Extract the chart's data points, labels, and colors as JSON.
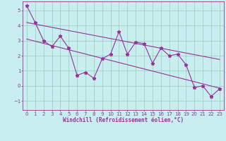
{
  "title": "",
  "xlabel": "Windchill (Refroidissement éolien,°C)",
  "bg_color": "#c8eef0",
  "grid_color": "#99ccbb",
  "line_color": "#993399",
  "xlim": [
    -0.5,
    23.5
  ],
  "ylim": [
    -1.6,
    5.6
  ],
  "xticks": [
    0,
    1,
    2,
    3,
    4,
    5,
    6,
    7,
    8,
    9,
    10,
    11,
    12,
    13,
    14,
    15,
    16,
    17,
    18,
    19,
    20,
    21,
    22,
    23
  ],
  "yticks": [
    -1,
    0,
    1,
    2,
    3,
    4,
    5
  ],
  "data_x": [
    0,
    1,
    2,
    3,
    4,
    5,
    6,
    7,
    8,
    9,
    10,
    11,
    12,
    13,
    14,
    15,
    16,
    17,
    18,
    19,
    20,
    21,
    22,
    23
  ],
  "data_y": [
    5.3,
    4.2,
    3.0,
    2.6,
    3.3,
    2.5,
    0.7,
    0.9,
    0.5,
    1.8,
    2.1,
    3.6,
    2.1,
    2.9,
    2.8,
    1.5,
    2.5,
    2.0,
    2.1,
    1.4,
    -0.1,
    0.0,
    -0.7,
    -0.2
  ],
  "trend1_x": [
    0,
    23
  ],
  "trend1_y": [
    4.2,
    1.75
  ],
  "trend2_x": [
    0,
    23
  ],
  "trend2_y": [
    3.1,
    -0.15
  ],
  "marker": "*",
  "markersize": 3.5,
  "linewidth": 0.8,
  "xlabel_fontsize": 5.5,
  "tick_fontsize": 5,
  "line_color2": "#993399",
  "spine_color": "#993399",
  "xlabel_color": "#993399",
  "tick_color": "#993399"
}
